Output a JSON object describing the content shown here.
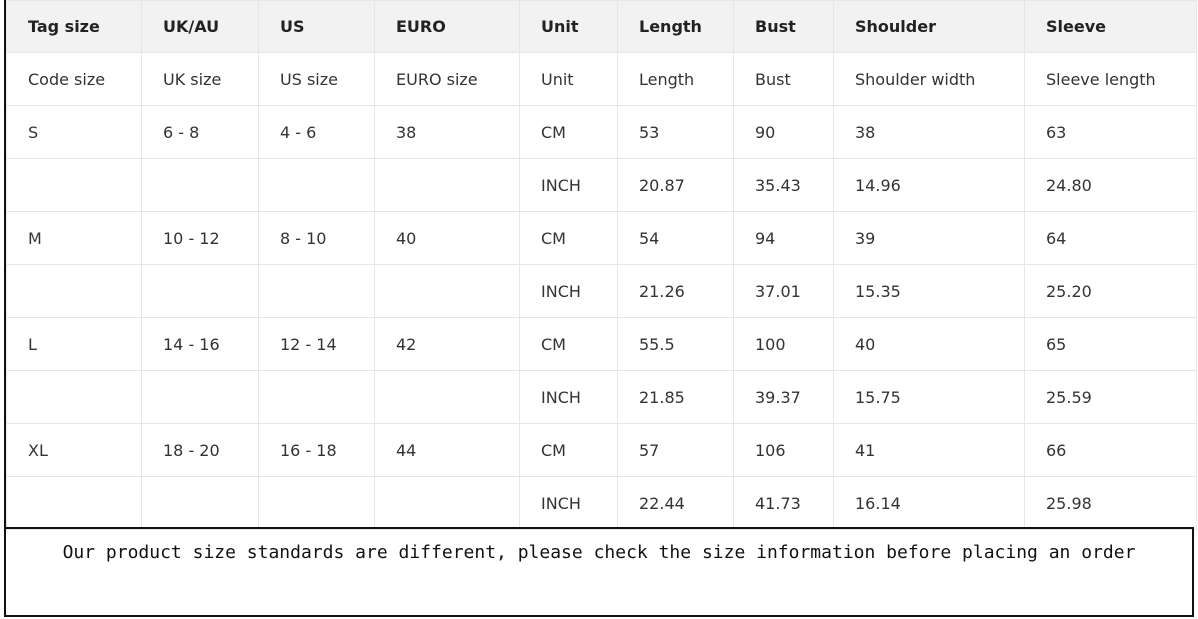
{
  "table": {
    "headers": [
      "Tag size",
      "UK/AU",
      "US",
      "EURO",
      "Unit",
      "Length",
      "Bust",
      "Shoulder",
      "Sleeve"
    ],
    "rows": [
      [
        "Code size",
        "UK size",
        "US size",
        "EURO size",
        "Unit",
        "Length",
        "Bust",
        "Shoulder width",
        "Sleeve length"
      ],
      [
        "S",
        "6 - 8",
        "4 - 6",
        "38",
        "CM",
        "53",
        "90",
        "38",
        "63"
      ],
      [
        "",
        "",
        "",
        "",
        "INCH",
        "20.87",
        "35.43",
        "14.96",
        "24.80"
      ],
      [
        "M",
        "10 - 12",
        "8 - 10",
        "40",
        "CM",
        "54",
        "94",
        "39",
        "64"
      ],
      [
        "",
        "",
        "",
        "",
        "INCH",
        "21.26",
        "37.01",
        "15.35",
        "25.20"
      ],
      [
        "L",
        "14 - 16",
        "12 - 14",
        "42",
        "CM",
        "55.5",
        "100",
        "40",
        "65"
      ],
      [
        "",
        "",
        "",
        "",
        "INCH",
        "21.85",
        "39.37",
        "15.75",
        "25.59"
      ],
      [
        "XL",
        "18 - 20",
        "16 - 18",
        "44",
        "CM",
        "57",
        "106",
        "41",
        "66"
      ],
      [
        "",
        "",
        "",
        "",
        "INCH",
        "22.44",
        "41.73",
        "16.14",
        "25.98"
      ]
    ]
  },
  "notice": "Our product size standards are different, please check the size information before placing an order"
}
